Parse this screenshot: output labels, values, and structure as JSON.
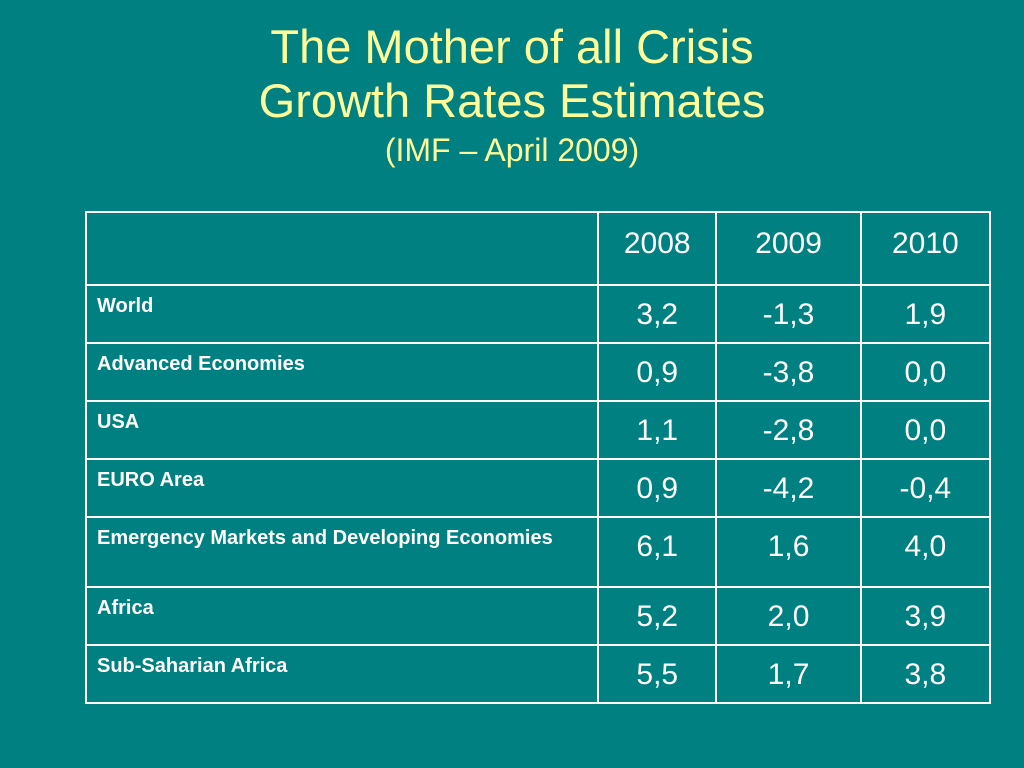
{
  "slide": {
    "title_line1": "The Mother of all Crisis",
    "title_line2": "Growth Rates Estimates",
    "subtitle": "(IMF – April 2009)"
  },
  "table": {
    "corner": "",
    "years": [
      "2008",
      "2009",
      "2010"
    ],
    "rows": [
      {
        "label": "World",
        "values": [
          "3,2",
          "-1,3",
          "1,9"
        ]
      },
      {
        "label": "Advanced Economies",
        "values": [
          "0,9",
          "-3,8",
          "0,0"
        ]
      },
      {
        "label": "USA",
        "values": [
          "1,1",
          "-2,8",
          "0,0"
        ]
      },
      {
        "label": "EURO Area",
        "values": [
          "0,9",
          "-4,2",
          "-0,4"
        ]
      },
      {
        "label": "Emergency Markets and Developing Economies",
        "values": [
          "6,1",
          "1,6",
          "4,0"
        ]
      },
      {
        "label": "Africa",
        "values": [
          "5,2",
          "2,0",
          "3,9"
        ]
      },
      {
        "label": "Sub-Saharian Africa",
        "values": [
          "5,5",
          "1,7",
          "3,8"
        ]
      }
    ]
  },
  "colors": {
    "background": "#008080",
    "title": "#ffff99",
    "table_text": "#ffffff"
  }
}
